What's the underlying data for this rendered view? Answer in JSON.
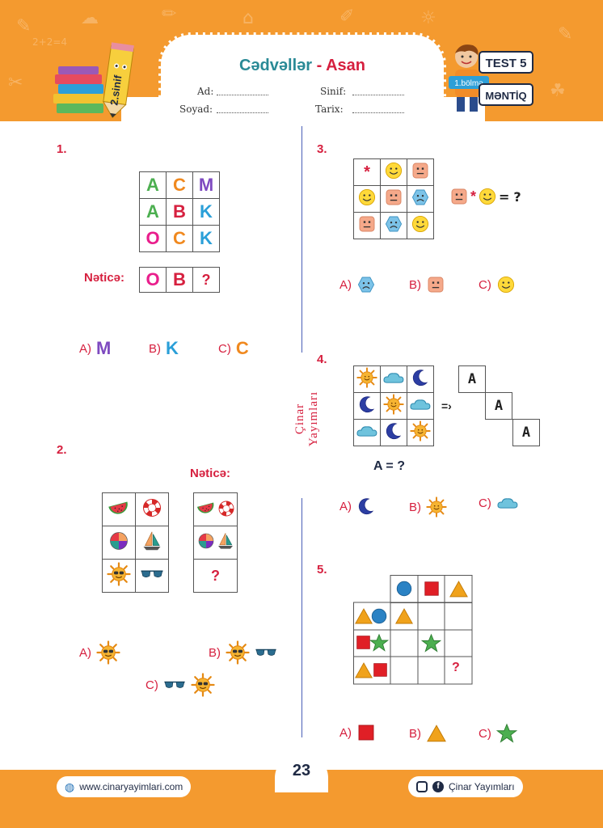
{
  "header": {
    "title_main": "Cədvəllər",
    "title_sep": "-",
    "title_level": "Asan",
    "fields": {
      "ad": "Ad:",
      "soyad": "Soyad:",
      "sinif": "Sinif:",
      "tarix": "Tarix:"
    },
    "grade_badge": "2.sinif",
    "test_label": "TEST 5",
    "section_label": "1.bölmə",
    "subject_label": "MƏNTİQ",
    "doodle_text": "2+2=4"
  },
  "divider_text": "Çinar Yayımları",
  "footer": {
    "page_number": "23",
    "website": "www.cinaryayimlari.com",
    "social": "Çinar Yayımları"
  },
  "colors": {
    "orange": "#f49a2f",
    "red": "#d6203f",
    "teal": "#2a8a96",
    "navy": "#1f2a44",
    "purple": "#7e4ac0",
    "green": "#4caf50",
    "pink": "#e91e8c",
    "blue": "#2a9fd8"
  },
  "q1": {
    "number": "1.",
    "grid": [
      [
        "A",
        "C",
        "M"
      ],
      [
        "A",
        "B",
        "K"
      ],
      [
        "O",
        "C",
        "K"
      ]
    ],
    "result_label": "Nəticə:",
    "result": [
      "O",
      "B",
      "?"
    ],
    "options": [
      {
        "label": "A)",
        "value": "M"
      },
      {
        "label": "B)",
        "value": "K"
      },
      {
        "label": "C)",
        "value": "C"
      }
    ]
  },
  "q2": {
    "number": "2.",
    "result_label": "Nəticə:",
    "grid": [
      [
        "watermelon-icon",
        "lifebuoy-icon"
      ],
      [
        "beach-ball-icon",
        "sailboat-icon"
      ],
      [
        "sun-icon",
        "sunglasses-icon"
      ]
    ],
    "result_grid": [
      "watermelon+lifebuoy",
      "beach-ball+sailboat",
      "?"
    ],
    "question_mark": "?",
    "options": [
      {
        "label": "A)",
        "icons": [
          "sun-icon"
        ]
      },
      {
        "label": "B)",
        "icons": [
          "sun-icon",
          "sunglasses-icon"
        ]
      },
      {
        "label": "C)",
        "icons": [
          "sunglasses-icon",
          "sun-icon"
        ]
      }
    ]
  },
  "q3": {
    "number": "3.",
    "grid": [
      [
        "*",
        "smile-yellow",
        "neutral-orange"
      ],
      [
        "smile-yellow",
        "neutral-orange",
        "sad-blue"
      ],
      [
        "neutral-orange",
        "sad-blue",
        "smile-yellow"
      ]
    ],
    "equation": {
      "op": "*",
      "eq": "=",
      "q": "?"
    },
    "options": [
      {
        "label": "A)",
        "icon": "sad-blue"
      },
      {
        "label": "B)",
        "icon": "neutral-orange"
      },
      {
        "label": "C)",
        "icon": "smile-yellow"
      }
    ]
  },
  "q4": {
    "number": "4.",
    "grid": [
      [
        "sun-icon",
        "cloud-icon",
        "moon-icon"
      ],
      [
        "moon-icon",
        "sun-icon",
        "cloud-icon"
      ],
      [
        "cloud-icon",
        "moon-icon",
        "sun-icon"
      ]
    ],
    "arrow": "=›",
    "letter": "A",
    "question": "A = ?",
    "options": [
      {
        "label": "A)",
        "icon": "moon-icon"
      },
      {
        "label": "B)",
        "icon": "sun-icon"
      },
      {
        "label": "C)",
        "icon": "cloud-icon"
      }
    ]
  },
  "q5": {
    "number": "5.",
    "question_mark": "?",
    "options": [
      {
        "label": "A)",
        "icon": "square-icon"
      },
      {
        "label": "B)",
        "icon": "triangle-icon"
      },
      {
        "label": "C)",
        "icon": "star-icon"
      }
    ]
  }
}
